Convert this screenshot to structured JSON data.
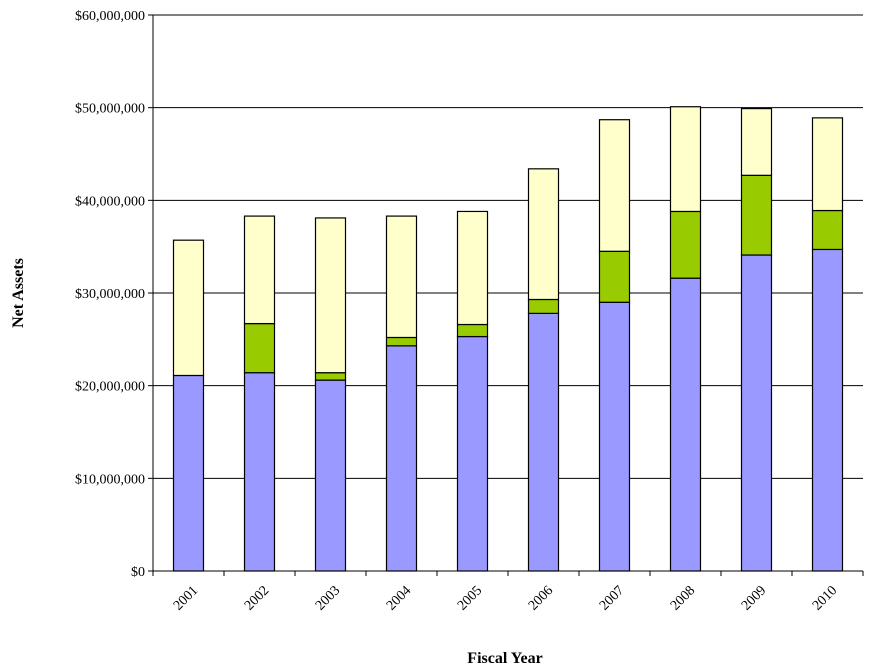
{
  "chart_data": {
    "type": "bar",
    "stacked": true,
    "title": "",
    "xlabel": "Fiscal Year",
    "ylabel": "Net Assets",
    "categories": [
      "2001",
      "2002",
      "2003",
      "2004",
      "2005",
      "2006",
      "2007",
      "2008",
      "2009",
      "2010"
    ],
    "ylim": [
      0,
      60000000
    ],
    "yticks": [
      0,
      10000000,
      20000000,
      30000000,
      40000000,
      50000000,
      60000000
    ],
    "ytick_labels": [
      "$0",
      "$10,000,000",
      "$20,000,000",
      "$30,000,000",
      "$40,000,000",
      "$50,000,000",
      "$60,000,000"
    ],
    "grid": "horizontal",
    "legend": "none",
    "series": [
      {
        "color": "#9999ff",
        "values": [
          21100000,
          21400000,
          20600000,
          24300000,
          25300000,
          27800000,
          29000000,
          31600000,
          34100000,
          34700000
        ]
      },
      {
        "color": "#99cc00",
        "values": [
          0,
          5300000,
          800000,
          900000,
          1300000,
          1500000,
          5500000,
          7200000,
          8600000,
          4200000
        ]
      },
      {
        "color": "#ffffcc",
        "values": [
          14600000,
          11600000,
          16700000,
          13100000,
          12200000,
          14100000,
          14200000,
          11300000,
          7200000,
          10000000
        ]
      }
    ]
  }
}
